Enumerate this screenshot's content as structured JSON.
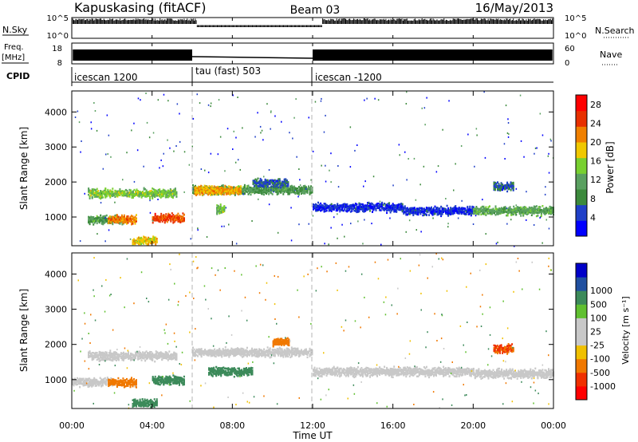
{
  "header": {
    "station": "Kapuskasing (fitACF)",
    "beam": "Beam 03",
    "date": "16/May/2013"
  },
  "panels": {
    "nsky": {
      "label": "N.Sky",
      "ticks": [
        "10^5",
        "10^0"
      ],
      "right_label": "N.Search",
      "right_ticks": [
        "10^5",
        "10^0"
      ]
    },
    "freq": {
      "label_line1": "Freq.",
      "label_line2": "[MHz]",
      "ticks": [
        "18",
        "8"
      ],
      "right_label": "Nave",
      "right_ticks": [
        "60",
        "0"
      ]
    },
    "cpid": {
      "label": "CPID",
      "segments": [
        {
          "label": "icescan 1200",
          "start_hour": 0
        },
        {
          "label": "tau (fast) 503",
          "start_hour": 6
        },
        {
          "label": "icescan -1200",
          "start_hour": 12
        }
      ]
    }
  },
  "colors": {
    "power_scale": [
      "#0000ff",
      "#2040c8",
      "#3c8a3c",
      "#5aa060",
      "#78d030",
      "#f0c800",
      "#f08000",
      "#e83000",
      "#ff0000"
    ],
    "velocity_scale": [
      "#ff0000",
      "#f03000",
      "#f07800",
      "#f0c000",
      "#c8c8c8",
      "#c8c8c8",
      "#60c030",
      "#3c8a5a",
      "#2050a0",
      "#0000c8"
    ],
    "dashed_line": "#b4b4b4"
  },
  "chart_data": [
    {
      "type": "heatmap",
      "name": "Power",
      "xlabel": "",
      "ylabel": "Slant Range [km]",
      "xlim": [
        0,
        24
      ],
      "ylim": [
        180,
        4600
      ],
      "yticks": [
        "1000",
        "2000",
        "3000",
        "4000"
      ],
      "colorbar": {
        "title": "Power [dB]",
        "ticks": [
          "4",
          "8",
          "12",
          "16",
          "20",
          "24",
          "28"
        ],
        "range": [
          0,
          30
        ]
      },
      "bands": [
        {
          "from_hour": 0.8,
          "to_hour": 5.2,
          "range_km": 1700,
          "power_db": 14
        },
        {
          "from_hour": 0.8,
          "to_hour": 2.6,
          "range_km": 950,
          "power_db": 10
        },
        {
          "from_hour": 1.8,
          "to_hour": 3.2,
          "range_km": 950,
          "power_db": 22
        },
        {
          "from_hour": 4.0,
          "to_hour": 5.6,
          "range_km": 1000,
          "power_db": 24
        },
        {
          "from_hour": 3.0,
          "to_hour": 4.2,
          "range_km": 350,
          "power_db": 18
        },
        {
          "from_hour": 6.0,
          "to_hour": 12.0,
          "range_km": 1800,
          "power_db": 10
        },
        {
          "from_hour": 6.1,
          "to_hour": 8.4,
          "range_km": 1780,
          "power_db": 20
        },
        {
          "from_hour": 7.2,
          "to_hour": 7.6,
          "range_km": 1250,
          "power_db": 14
        },
        {
          "from_hour": 9.0,
          "to_hour": 10.8,
          "range_km": 2000,
          "power_db": 6
        },
        {
          "from_hour": 12.0,
          "to_hour": 16.5,
          "range_km": 1300,
          "power_db": 4
        },
        {
          "from_hour": 16.5,
          "to_hour": 20.0,
          "range_km": 1200,
          "power_db": 4
        },
        {
          "from_hour": 20.0,
          "to_hour": 24.0,
          "range_km": 1200,
          "power_db": 12
        },
        {
          "from_hour": 21.0,
          "to_hour": 22.0,
          "range_km": 1900,
          "power_db": 6
        }
      ]
    },
    {
      "type": "heatmap",
      "name": "Velocity",
      "xlabel": "Time UT",
      "ylabel": "Slant Range [km]",
      "xlim": [
        0,
        24
      ],
      "ylim": [
        180,
        4600
      ],
      "xticks": [
        "00:00",
        "04:00",
        "08:00",
        "12:00",
        "16:00",
        "20:00",
        "00:00"
      ],
      "yticks": [
        "1000",
        "2000",
        "3000",
        "4000"
      ],
      "colorbar": {
        "title": "Velocity [m s⁻¹]",
        "ticks": [
          "-1000",
          "-500",
          "-100",
          "-25",
          "25",
          "100",
          "500",
          "1000"
        ]
      },
      "bands": [
        {
          "from_hour": 0.8,
          "to_hour": 5.2,
          "range_km": 1700,
          "velocity": 0
        },
        {
          "from_hour": 0.0,
          "to_hour": 2.0,
          "range_km": 950,
          "velocity": 0
        },
        {
          "from_hour": 1.8,
          "to_hour": 3.2,
          "range_km": 950,
          "velocity": -300
        },
        {
          "from_hour": 4.0,
          "to_hour": 5.6,
          "range_km": 1000,
          "velocity": 150
        },
        {
          "from_hour": 3.0,
          "to_hour": 4.2,
          "range_km": 350,
          "velocity": 200
        },
        {
          "from_hour": 6.0,
          "to_hour": 12.0,
          "range_km": 1800,
          "velocity": 0
        },
        {
          "from_hour": 6.8,
          "to_hour": 9.0,
          "range_km": 1250,
          "velocity": 300
        },
        {
          "from_hour": 10.0,
          "to_hour": 10.8,
          "range_km": 2100,
          "velocity": -200
        },
        {
          "from_hour": 12.0,
          "to_hour": 20.0,
          "range_km": 1250,
          "velocity": 0
        },
        {
          "from_hour": 20.0,
          "to_hour": 24.0,
          "range_km": 1200,
          "velocity": 0
        },
        {
          "from_hour": 21.0,
          "to_hour": 22.0,
          "range_km": 1900,
          "velocity": -500
        }
      ]
    }
  ]
}
